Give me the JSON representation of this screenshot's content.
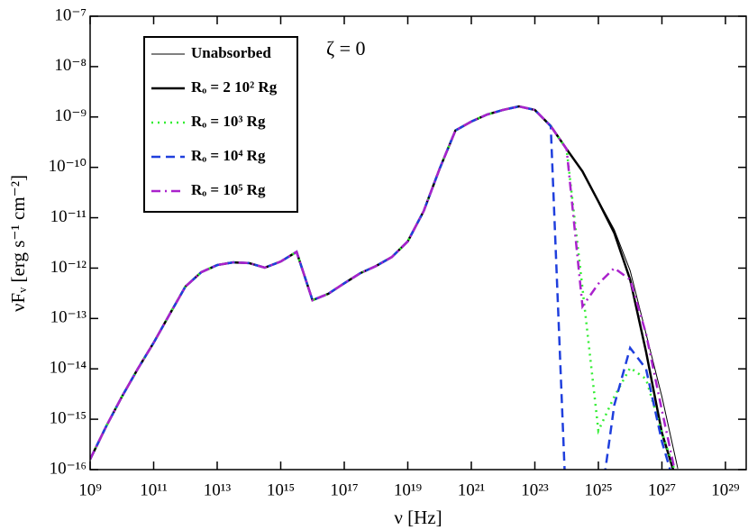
{
  "chart_data": {
    "type": "line",
    "xlabel": "ν [Hz]",
    "ylabel": "νFᵥ [erg s⁻¹ cm⁻²]",
    "annotation": "ζ = 0",
    "xscale": "log",
    "yscale": "log",
    "xlim": [
      1000000000.0,
      4.5e+29
    ],
    "ylim": [
      1e-16,
      1e-07
    ],
    "xticks": [
      {
        "value": 1000000000.0,
        "label": "10⁹"
      },
      {
        "value": 100000000000.0,
        "label": "10¹¹"
      },
      {
        "value": 10000000000000.0,
        "label": "10¹³"
      },
      {
        "value": 1000000000000000.0,
        "label": "10¹⁵"
      },
      {
        "value": 1e+17,
        "label": "10¹⁷"
      },
      {
        "value": 1e+19,
        "label": "10¹⁹"
      },
      {
        "value": 1e+21,
        "label": "10²¹"
      },
      {
        "value": 1e+23,
        "label": "10²³"
      },
      {
        "value": 1e+25,
        "label": "10²⁵"
      },
      {
        "value": 1e+27,
        "label": "10²⁷"
      },
      {
        "value": 1e+29,
        "label": "10²⁹"
      }
    ],
    "yticks": [
      {
        "value": 1e-16,
        "label": "10⁻¹⁶"
      },
      {
        "value": 1e-15,
        "label": "10⁻¹⁵"
      },
      {
        "value": 1e-14,
        "label": "10⁻¹⁴"
      },
      {
        "value": 1e-13,
        "label": "10⁻¹³"
      },
      {
        "value": 1e-12,
        "label": "10⁻¹²"
      },
      {
        "value": 1e-11,
        "label": "10⁻¹¹"
      },
      {
        "value": 1e-10,
        "label": "10⁻¹⁰"
      },
      {
        "value": 1e-09,
        "label": "10⁻⁹"
      },
      {
        "value": 1e-08,
        "label": "10⁻⁸"
      },
      {
        "value": 1e-07,
        "label": "10⁻⁷"
      }
    ],
    "x": [
      1000000000.0,
      3162000000.0,
      10000000000.0,
      31620000000.0,
      100000000000.0,
      316200000000.0,
      1000000000000.0,
      3162000000000.0,
      10000000000000.0,
      31620000000000.0,
      100000000000000.0,
      316200000000000.0,
      1000000000000000.0,
      3162000000000000.0,
      1e+16,
      3.162e+16,
      1e+17,
      3.162e+17,
      1e+18,
      3.162e+18,
      1e+19,
      3.162e+19,
      1e+20,
      3.162e+20,
      1e+21,
      3.162e+21,
      1e+22,
      3.162e+22,
      1e+23,
      3.162e+23,
      1e+24,
      3.162e+24,
      1e+25,
      3.162e+25,
      1e+26,
      3.162e+26,
      1e+27,
      3.162e+27
    ],
    "series": [
      {
        "name": "Unabsorbed",
        "color": "#000000",
        "width": 1,
        "dash": "solid",
        "values": [
          1.6e-16,
          7.1e-16,
          2.8e-15,
          1e-14,
          3.3e-14,
          1.2e-13,
          4.3e-13,
          8.3e-13,
          1.15e-12,
          1.3e-12,
          1.26e-12,
          1.02e-12,
          1.35e-12,
          2.1e-12,
          2.3e-13,
          3.1e-13,
          5e-13,
          7.9e-13,
          1.1e-12,
          1.66e-12,
          3.4e-12,
          1.35e-11,
          9.3e-11,
          5.4e-10,
          8.1e-10,
          1.12e-09,
          1.38e-09,
          1.62e-09,
          1.38e-09,
          6.6e-10,
          2.3e-10,
          8.3e-11,
          2.2e-11,
          5.8e-12,
          8.9e-13,
          5e-14,
          2.8e-15,
          1.05e-16
        ]
      },
      {
        "name": "Rₒ = 2 10² Rg",
        "color": "#000000",
        "width": 2.5,
        "dash": "solid",
        "values": [
          1.6e-16,
          7.1e-16,
          2.8e-15,
          1e-14,
          3.3e-14,
          1.2e-13,
          4.3e-13,
          8.3e-13,
          1.15e-12,
          1.3e-12,
          1.26e-12,
          1.02e-12,
          1.35e-12,
          2.1e-12,
          2.3e-13,
          3.1e-13,
          5e-13,
          7.9e-13,
          1.1e-12,
          1.66e-12,
          3.4e-12,
          1.35e-11,
          9.3e-11,
          5.4e-10,
          8.1e-10,
          1.12e-09,
          1.38e-09,
          1.62e-09,
          1.38e-09,
          6.6e-10,
          2.3e-10,
          8.3e-11,
          2.1e-11,
          5e-12,
          5.9e-13,
          2.2e-14,
          5.4e-16,
          5e-17
        ]
      },
      {
        "name": "Rₒ = 10³ Rg",
        "color": "#33ee33",
        "width": 2.5,
        "dash": "dotted",
        "values": [
          1.6e-16,
          7.1e-16,
          2.8e-15,
          1e-14,
          3.3e-14,
          1.2e-13,
          4.3e-13,
          8.3e-13,
          1.15e-12,
          1.3e-12,
          1.26e-12,
          1.02e-12,
          1.35e-12,
          2.1e-12,
          2.3e-13,
          3.1e-13,
          5e-13,
          7.9e-13,
          1.1e-12,
          1.66e-12,
          3.4e-12,
          1.35e-11,
          9.3e-11,
          5.4e-10,
          8.1e-10,
          1.12e-09,
          1.38e-09,
          1.62e-09,
          1.38e-09,
          6.6e-10,
          2.3e-10,
          4e-13,
          5.9e-16,
          2.8e-15,
          1.05e-14,
          6.3e-15,
          5.4e-16,
          6.3e-17
        ]
      },
      {
        "name": "Rₒ = 10⁴ Rg",
        "color": "#1f3fdd",
        "width": 2.5,
        "dash": "dashed",
        "values": [
          1.6e-16,
          7.1e-16,
          2.8e-15,
          1e-14,
          3.3e-14,
          1.2e-13,
          4.3e-13,
          8.3e-13,
          1.15e-12,
          1.3e-12,
          1.26e-12,
          1.02e-12,
          1.35e-12,
          2.1e-12,
          2.3e-13,
          3.1e-13,
          5e-13,
          7.9e-13,
          1.1e-12,
          1.66e-12,
          3.4e-12,
          1.35e-11,
          9.3e-11,
          5.4e-10,
          8.1e-10,
          1.12e-09,
          1.38e-09,
          1.62e-09,
          1.38e-09,
          6.6e-10,
          1e-17,
          null,
          1e-17,
          1.9e-15,
          2.6e-14,
          1e-14,
          3.6e-16,
          3e-17
        ]
      },
      {
        "name": "Rₒ = 10⁵ Rg",
        "color": "#aa22cc",
        "width": 2.5,
        "dash": "dashdot",
        "values": [
          1.6e-16,
          7.1e-16,
          2.8e-15,
          1e-14,
          3.3e-14,
          1.2e-13,
          4.3e-13,
          8.3e-13,
          1.15e-12,
          1.3e-12,
          1.26e-12,
          1.02e-12,
          1.35e-12,
          2.1e-12,
          2.3e-13,
          3.1e-13,
          5e-13,
          7.9e-13,
          1.1e-12,
          1.66e-12,
          3.4e-12,
          1.35e-11,
          9.3e-11,
          5.4e-10,
          8.1e-10,
          1.12e-09,
          1.38e-09,
          1.62e-09,
          1.38e-09,
          6.6e-10,
          2.3e-10,
          1.74e-13,
          4.9e-13,
          1e-12,
          5.9e-13,
          5e-14,
          1.5e-15,
          5e-17
        ]
      }
    ]
  }
}
